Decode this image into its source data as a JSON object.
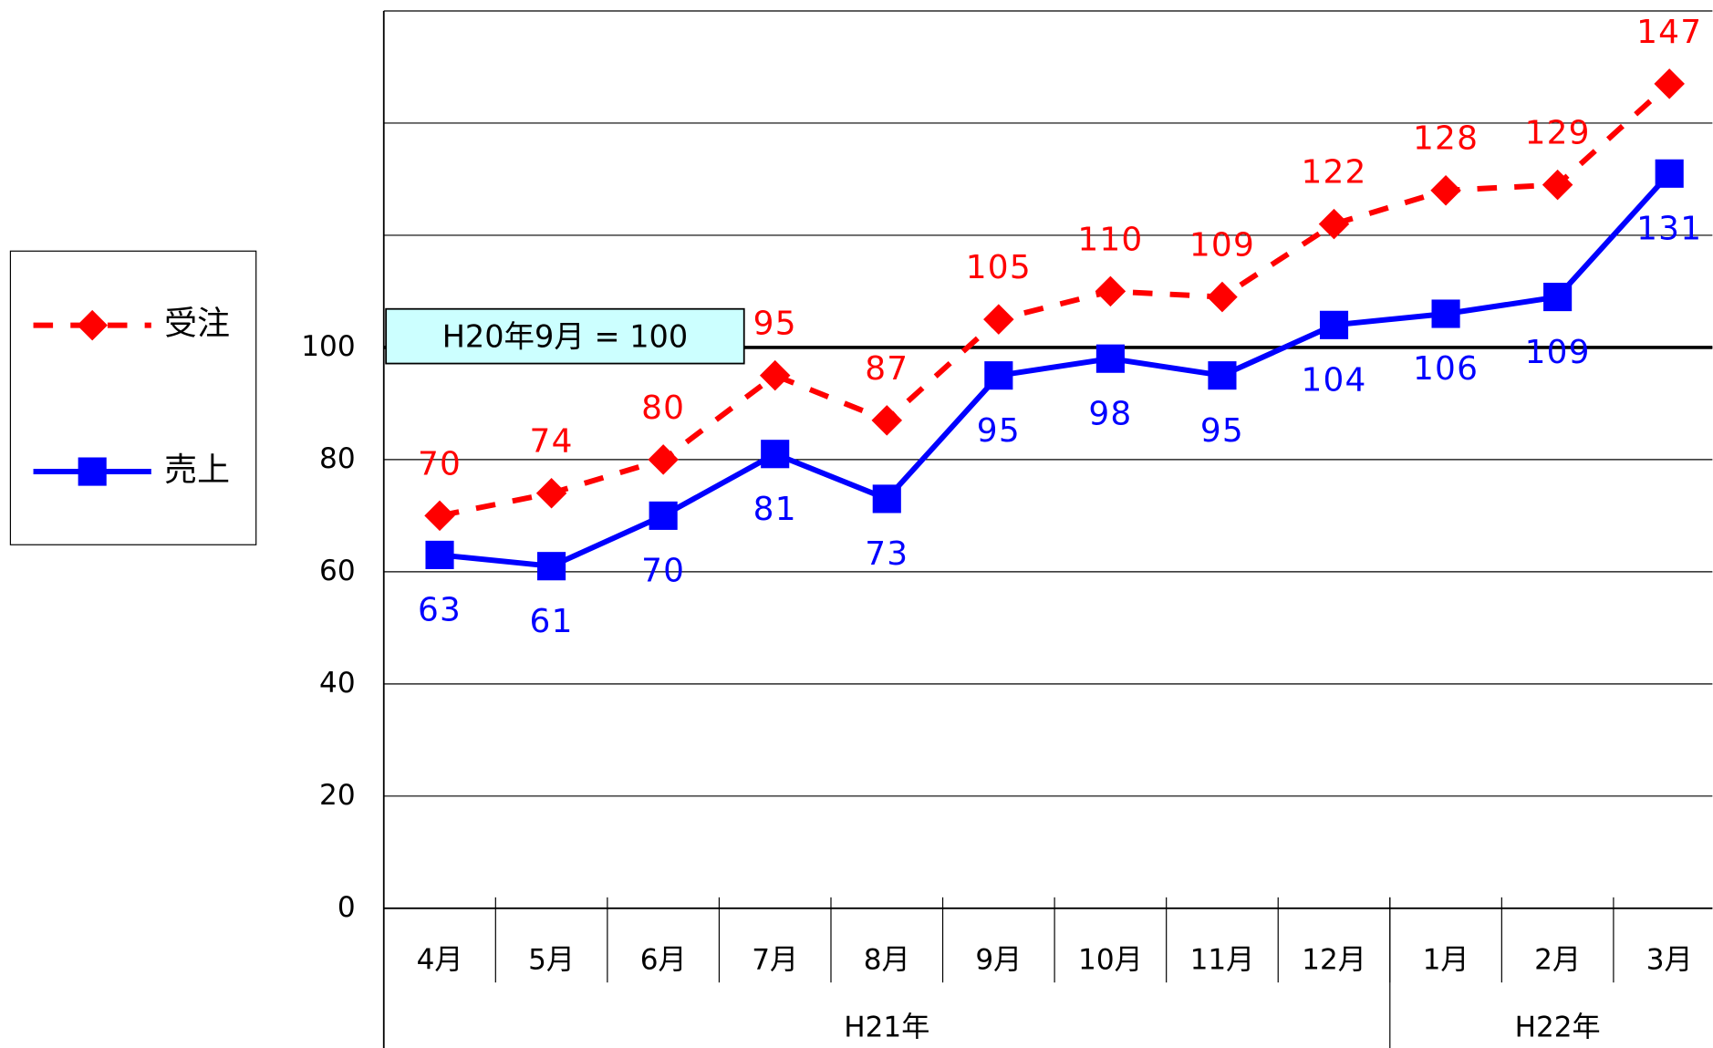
{
  "chart_data": {
    "type": "line",
    "categories": [
      "4月",
      "5月",
      "6月",
      "7月",
      "8月",
      "9月",
      "10月",
      "11月",
      "12月",
      "1月",
      "2月",
      "3月"
    ],
    "groups": [
      {
        "label": "H21年",
        "span": 9
      },
      {
        "label": "H22年",
        "span": 3
      }
    ],
    "series": [
      {
        "name": "受注",
        "color": "#ff0000",
        "dashed": true,
        "marker": "diamond",
        "values": [
          70,
          74,
          80,
          95,
          87,
          105,
          110,
          109,
          122,
          128,
          129,
          147
        ]
      },
      {
        "name": "売上",
        "color": "#0000ff",
        "dashed": false,
        "marker": "square",
        "values": [
          63,
          61,
          70,
          81,
          73,
          95,
          98,
          95,
          104,
          106,
          109,
          131
        ]
      }
    ],
    "ylim": [
      0,
      160
    ],
    "yticks": [
      0,
      20,
      40,
      60,
      80,
      100,
      {
        "value": 120,
        "label": null
      },
      {
        "value": 140,
        "label": null
      }
    ],
    "grid": true,
    "reference_line": {
      "value": 100,
      "label": "H20年9月 = 100"
    },
    "legend": "left"
  }
}
